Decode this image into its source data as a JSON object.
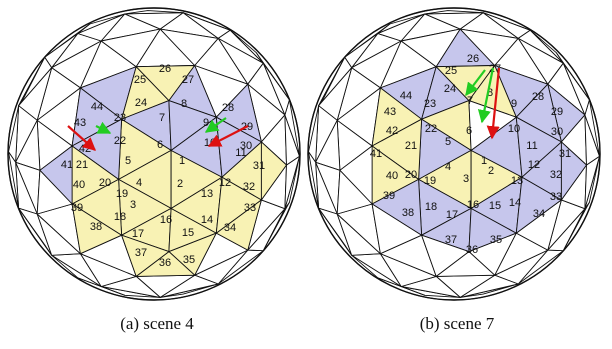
{
  "colors": {
    "yellow": "#f8f2b4",
    "purple": "#c6c6ec",
    "line": "#111111",
    "green": "#22cc22",
    "red": "#dd1111"
  },
  "panels": [
    {
      "id": "a",
      "caption": "(a) scene 4",
      "labels": [
        "1",
        "2",
        "3",
        "4",
        "5",
        "6",
        "7",
        "8",
        "9",
        "10",
        "11",
        "12",
        "13",
        "14",
        "15",
        "16",
        "17",
        "18",
        "19",
        "20",
        "21",
        "22",
        "23",
        "24",
        "25",
        "26",
        "27",
        "28",
        "29",
        "30",
        "31",
        "32",
        "33",
        "34",
        "35",
        "36",
        "37",
        "38",
        "39",
        "40",
        "41",
        "42",
        "43",
        "44"
      ],
      "purple_labels": [
        "7",
        "8",
        "9",
        "10",
        "11",
        "21",
        "22",
        "23",
        "27",
        "28",
        "29",
        "41",
        "42",
        "43",
        "44"
      ],
      "arrows": [
        {
          "color": "green",
          "points_to": "22"
        },
        {
          "color": "green",
          "points_to": "10"
        },
        {
          "color": "red",
          "points_to": "21"
        },
        {
          "color": "red",
          "points_to": "10"
        }
      ]
    },
    {
      "id": "b",
      "caption": "(b) scene 7",
      "labels": [
        "1",
        "2",
        "3",
        "4",
        "5",
        "6",
        "7",
        "8",
        "9",
        "10",
        "11",
        "12",
        "13",
        "14",
        "15",
        "16",
        "17",
        "18",
        "19",
        "20",
        "21",
        "22",
        "23",
        "24",
        "25",
        "26",
        "27",
        "28",
        "29",
        "30",
        "31",
        "32",
        "33",
        "34",
        "35",
        "36",
        "37",
        "38",
        "39",
        "40",
        "41",
        "42",
        "43",
        "44"
      ],
      "purple_labels": [
        "4",
        "5",
        "8",
        "9",
        "10",
        "11",
        "12",
        "13",
        "14",
        "15",
        "16",
        "17",
        "19",
        "22",
        "23",
        "26",
        "28",
        "29",
        "30",
        "31",
        "32",
        "33",
        "34",
        "35",
        "37",
        "38",
        "43",
        "44"
      ],
      "arrows": [
        {
          "color": "green",
          "points_to": "7"
        },
        {
          "color": "green",
          "points_to": "6"
        },
        {
          "color": "red",
          "points_to": "2"
        }
      ]
    }
  ]
}
